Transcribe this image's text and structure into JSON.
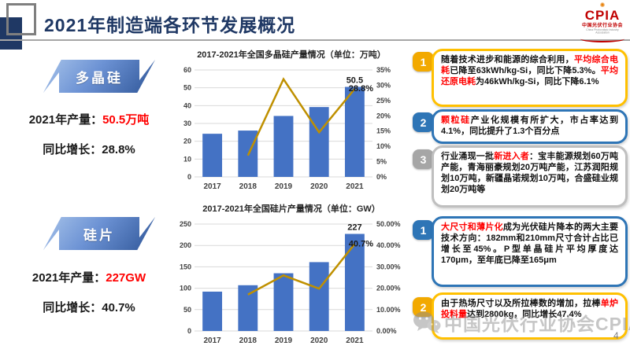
{
  "header": {
    "title": "2021年制造端各环节发展概况",
    "logo": {
      "brand": "CPIA",
      "burst": "✺",
      "subtitle": "中国光伏行业协会",
      "tagline": "China Photovoltaic Industry Association"
    }
  },
  "sections": [
    {
      "banner": "多晶硅",
      "production_label": "2021年产量：",
      "production_value": "50.5万吨",
      "growth_label": "同比增长：",
      "growth_value": "28.8%"
    },
    {
      "banner": "硅片",
      "production_label": "2021年产量：",
      "production_value": "227GW",
      "growth_label": "同比增长：",
      "growth_value": "40.7%"
    }
  ],
  "chart_data": [
    {
      "type": "combo-bar-line",
      "title": "2017-2021年全国多晶硅产量情况（单位：万吨）",
      "categories": [
        "2017",
        "2018",
        "2019",
        "2020",
        "2021"
      ],
      "series": [
        {
          "name": "产量(万吨)",
          "type": "bar",
          "axis": "left",
          "values": [
            24.2,
            26,
            34.2,
            39.2,
            50.5
          ]
        },
        {
          "name": "同比增长率",
          "type": "line",
          "axis": "right",
          "values": [
            null,
            7,
            32,
            14.6,
            28.8
          ]
        }
      ],
      "left_axis": {
        "min": 0,
        "max": 60,
        "step": 10,
        "labels": [
          "0",
          "10",
          "20",
          "30",
          "40",
          "50",
          "60"
        ]
      },
      "right_axis": {
        "min": 0,
        "max": 35,
        "step": 5,
        "labels": [
          "0%",
          "5%",
          "10%",
          "15%",
          "20%",
          "25%",
          "30%",
          "35%"
        ]
      },
      "annotations": {
        "last_bar_label": "50.5",
        "last_line_label": "28.8%"
      },
      "bar_color": "#4472C4",
      "line_color": "#BF9000",
      "grid": true,
      "legend": "none"
    },
    {
      "type": "combo-bar-line",
      "title": "2017-2021年全国硅片产量情况（单位：GW）",
      "categories": [
        "2017",
        "2018",
        "2019",
        "2020",
        "2021"
      ],
      "series": [
        {
          "name": "产量(GW)",
          "type": "bar",
          "axis": "left",
          "values": [
            92,
            107,
            135,
            161,
            227
          ]
        },
        {
          "name": "同比增长率",
          "type": "line",
          "axis": "right",
          "values": [
            null,
            17,
            26,
            19.8,
            40.7
          ]
        }
      ],
      "left_axis": {
        "min": 0,
        "max": 250,
        "step": 50,
        "labels": [
          "0",
          "50",
          "100",
          "150",
          "200",
          "250"
        ]
      },
      "right_axis": {
        "min": 0,
        "max": 50,
        "step": 10,
        "labels": [
          "0.00%",
          "10.00%",
          "20.00%",
          "30.00%",
          "40.00%",
          "50.00%"
        ]
      },
      "annotations": {
        "last_bar_label": "227",
        "last_line_label": "40.7%"
      },
      "bar_color": "#4472C4",
      "line_color": "#BF9000",
      "grid": true,
      "legend": "none"
    }
  ],
  "notes_polysilicon": [
    {
      "badge": "1",
      "color": "yellow",
      "segments": [
        {
          "text": "随着技术进步和能源的综合利用，",
          "red": false
        },
        {
          "text": "平均综合电耗",
          "red": true
        },
        {
          "text": "已降至63kWh/kg-Si，同比下降5.3%。",
          "red": false
        },
        {
          "text": "平均还原电耗",
          "red": true
        },
        {
          "text": "为46kWh/kg-Si，同比下降6.1%",
          "red": false
        }
      ]
    },
    {
      "badge": "2",
      "color": "blue",
      "segments": [
        {
          "text": "颗粒硅",
          "red": true
        },
        {
          "text": "产业化规模有所扩大，市占率达到4.1%，同比提升了1.3个百分点",
          "red": false
        }
      ]
    },
    {
      "badge": "3",
      "color": "gray",
      "segments": [
        {
          "text": "行业涌现一批",
          "red": false
        },
        {
          "text": "新进入者",
          "red": true
        },
        {
          "text": "：宝丰能源规划60万吨产能，青海丽豪规划20万吨产能，江苏润阳规划10万吨，新疆晶诺规划10万吨，合盛硅业规划20万吨等",
          "red": false
        }
      ]
    }
  ],
  "notes_wafer": [
    {
      "badge": "1",
      "color": "blue",
      "segments": [
        {
          "text": "大尺寸和薄片化",
          "red": true
        },
        {
          "text": "成为光伏硅片降本的两大主要技术方向：182mm和210mm尺寸合计占比已增长至45%。P型单晶硅片平均厚度达170μm，至年底已降至165μm",
          "red": false
        }
      ]
    },
    {
      "badge": "2",
      "color": "yellow",
      "segments": [
        {
          "text": "由于热场尺寸以及所拉棒数的增加，拉棒",
          "red": false
        },
        {
          "text": "单炉投料量",
          "red": true
        },
        {
          "text": "达到2800kg，同比增长47.4%",
          "red": false
        }
      ]
    }
  ],
  "watermark": {
    "text": "中国光伏行业协会CPIA"
  },
  "page_number": "4",
  "colors": {
    "accent_navy": "#1F3864",
    "bar_blue": "#4472C4",
    "line_gold": "#BF9000",
    "highlight_red": "#FF0000",
    "badge_yellow": "#F2A900",
    "badge_blue": "#2E75B6",
    "badge_gray": "#A6A6A6"
  }
}
